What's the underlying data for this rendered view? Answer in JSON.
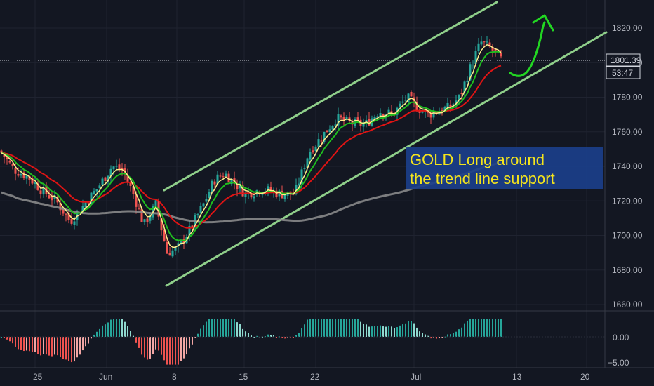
{
  "chart_data": {
    "type": "candlestick",
    "y_axis": {
      "range": [
        1652,
        1836
      ],
      "tick_labels": [
        "1820.00",
        "1800.00",
        "1780.00",
        "1760.00",
        "1740.00",
        "1720.00",
        "1700.00",
        "1680.00",
        "1660.00"
      ]
    },
    "x_axis": {
      "tick_labels": [
        "25",
        "Jun",
        "8",
        "15",
        "22",
        "Jul",
        "13",
        "20"
      ]
    },
    "last_price": {
      "value": "1801.39",
      "countdown": "53:47"
    },
    "annotation": {
      "line1": "GOLD Long around",
      "line2": "the trend line support"
    },
    "oscillator": {
      "tick_labels": [
        "0.00",
        "−5.00"
      ],
      "range": [
        -6.2,
        6.2
      ]
    },
    "colors": {
      "background": "#131722",
      "bull": "#26a69a",
      "bear": "#ef5350",
      "channel": "#8fcf8a",
      "ema_fast": "#ffee8a",
      "ema_mid": "#1fbf1f",
      "ema_slow": "#e01414",
      "ma_long": "#8f8f8f",
      "arrow": "#22d622",
      "annotation_bg": "#1b3f8a",
      "annotation_text": "#f5e51c"
    }
  }
}
